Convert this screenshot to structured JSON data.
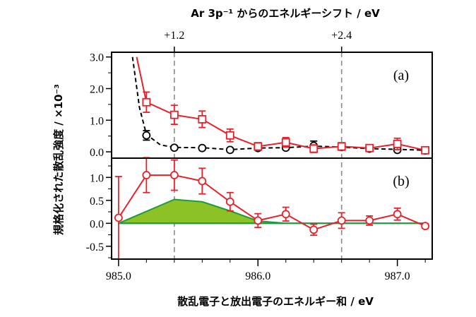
{
  "chart_data": {
    "type": "line",
    "x_label": "散乱電子と放出電子のエネルギー和 / eV",
    "x_ticks": [
      {
        "value": 985.0,
        "label": "985.0"
      },
      {
        "value": 986.0,
        "label": "986.0"
      },
      {
        "value": 987.0,
        "label": "987.0"
      }
    ],
    "xlim": [
      984.95,
      987.25
    ],
    "top_axis_label": "Ar 3p⁻¹ からのエネルギーシフト / eV",
    "top_ticks": [
      {
        "value": 985.4,
        "label": "+1.2"
      },
      {
        "value": 986.6,
        "label": "+2.4"
      }
    ],
    "y_label": "規格化された散乱強度 / ×10⁻³",
    "panels": [
      {
        "label": "(a)",
        "ylim": [
          -0.2,
          3.15
        ],
        "y_ticks": [
          {
            "value": 0.0,
            "label": "0.0"
          },
          {
            "value": 1.0,
            "label": "1.0"
          },
          {
            "value": 2.0,
            "label": "2.0"
          },
          {
            "value": 3.0,
            "label": "3.0"
          }
        ],
        "series": [
          {
            "marker": "circle",
            "color": "#000000",
            "line": "dashed",
            "curve": [
              [
                985.1,
                3.0
              ],
              [
                985.15,
                1.4
              ],
              [
                985.2,
                0.55
              ],
              [
                985.3,
                0.22
              ],
              [
                985.4,
                0.14
              ],
              [
                985.6,
                0.13
              ],
              [
                985.8,
                0.07
              ],
              [
                986.0,
                0.12
              ],
              [
                986.2,
                0.13
              ],
              [
                986.4,
                0.18
              ],
              [
                986.6,
                0.15
              ],
              [
                986.8,
                0.1
              ],
              [
                987.0,
                0.08
              ],
              [
                987.2,
                0.05
              ]
            ],
            "points": [
              [
                985.2,
                0.52
              ],
              [
                985.4,
                0.13
              ],
              [
                985.6,
                0.12
              ],
              [
                985.8,
                0.06
              ],
              [
                986.0,
                0.12
              ],
              [
                986.2,
                0.13
              ],
              [
                986.4,
                0.19
              ],
              [
                986.6,
                0.15
              ],
              [
                986.8,
                0.1
              ],
              [
                987.0,
                0.06
              ],
              [
                987.2,
                0.04
              ]
            ],
            "errors": [
              0.15,
              0.05,
              0.05,
              0.05,
              0.05,
              0.05,
              0.15,
              0.05,
              0.05,
              0.05,
              0.05
            ]
          },
          {
            "marker": "square",
            "color": "#e8202a",
            "line": "solid",
            "curve": [
              [
                985.13,
                3.0
              ],
              [
                985.2,
                1.57
              ],
              [
                985.4,
                1.17
              ],
              [
                985.6,
                1.03
              ],
              [
                985.8,
                0.52
              ],
              [
                986.0,
                0.17
              ],
              [
                986.2,
                0.3
              ],
              [
                986.4,
                0.1
              ],
              [
                986.6,
                0.17
              ],
              [
                986.8,
                0.12
              ],
              [
                987.0,
                0.25
              ],
              [
                987.2,
                0.05
              ]
            ],
            "points": [
              [
                985.2,
                1.57
              ],
              [
                985.4,
                1.17
              ],
              [
                985.6,
                1.03
              ],
              [
                985.8,
                0.52
              ],
              [
                986.0,
                0.17
              ],
              [
                986.2,
                0.3
              ],
              [
                986.4,
                0.1
              ],
              [
                986.6,
                0.17
              ],
              [
                986.8,
                0.12
              ],
              [
                987.0,
                0.25
              ],
              [
                987.2,
                0.05
              ]
            ],
            "errors": [
              0.32,
              0.3,
              0.26,
              0.2,
              0.12,
              0.15,
              0.12,
              0.12,
              0.1,
              0.18,
              0.1
            ]
          }
        ]
      },
      {
        "label": "(b)",
        "ylim": [
          -0.78,
          1.42
        ],
        "y_ticks": [
          {
            "value": -0.5,
            "label": "-0.5"
          },
          {
            "value": 0.0,
            "label": "0.0"
          },
          {
            "value": 0.5,
            "label": "0.5"
          },
          {
            "value": 1.0,
            "label": "1.0"
          }
        ],
        "area": {
          "fill": "#8dc226",
          "stroke": "#1f9a3c",
          "points": [
            [
              985.0,
              0.0
            ],
            [
              985.4,
              0.52
            ],
            [
              985.6,
              0.47
            ],
            [
              985.8,
              0.27
            ],
            [
              986.0,
              0.05
            ],
            [
              986.2,
              0.0
            ],
            [
              987.2,
              0.0
            ]
          ]
        },
        "series": [
          {
            "marker": "circle",
            "color": "#e8202a",
            "line": "solid",
            "points": [
              [
                985.0,
                0.12
              ],
              [
                985.2,
                1.05
              ],
              [
                985.4,
                1.05
              ],
              [
                985.6,
                0.92
              ],
              [
                985.8,
                0.47
              ],
              [
                986.0,
                0.06
              ],
              [
                986.2,
                0.2
              ],
              [
                986.4,
                -0.14
              ],
              [
                986.6,
                0.06
              ],
              [
                986.8,
                0.06
              ],
              [
                987.0,
                0.2
              ],
              [
                987.2,
                -0.06
              ]
            ],
            "errors": [
              0.9,
              0.38,
              0.33,
              0.28,
              0.2,
              0.15,
              0.15,
              0.12,
              0.17,
              0.1,
              0.13,
              0.05
            ]
          }
        ]
      }
    ]
  }
}
